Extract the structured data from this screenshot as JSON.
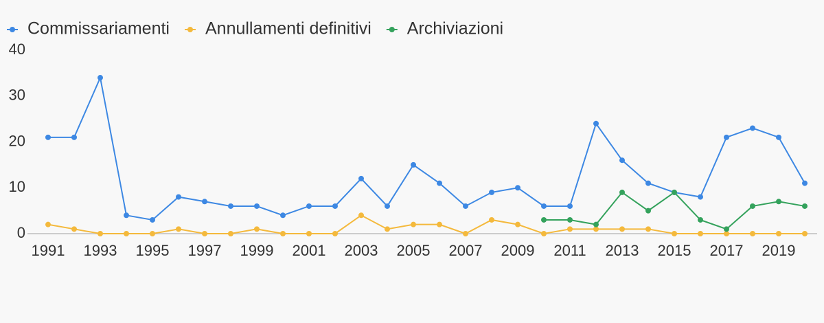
{
  "chart_data": {
    "type": "line",
    "x": [
      1991,
      1992,
      1993,
      1994,
      1995,
      1996,
      1997,
      1998,
      1999,
      2000,
      2001,
      2002,
      2003,
      2004,
      2005,
      2006,
      2007,
      2008,
      2009,
      2010,
      2011,
      2012,
      2013,
      2014,
      2015,
      2016,
      2017,
      2018,
      2019,
      2020
    ],
    "series": [
      {
        "name": "Commissariamenti",
        "color": "#3d88e3",
        "values": [
          21,
          21,
          34,
          4,
          3,
          8,
          7,
          6,
          6,
          4,
          6,
          6,
          12,
          6,
          15,
          11,
          6,
          9,
          10,
          6,
          6,
          24,
          16,
          11,
          9,
          8,
          21,
          23,
          21,
          11
        ]
      },
      {
        "name": "Annullamenti definitivi",
        "color": "#f4b93c",
        "values": [
          2,
          1,
          0,
          0,
          0,
          1,
          0,
          0,
          1,
          0,
          0,
          0,
          4,
          1,
          2,
          2,
          0,
          3,
          2,
          0,
          1,
          1,
          1,
          1,
          0,
          0,
          0,
          0,
          0,
          0
        ]
      },
      {
        "name": "Archiviazioni",
        "color": "#34a25c",
        "values": [
          null,
          null,
          null,
          null,
          null,
          null,
          null,
          null,
          null,
          null,
          null,
          null,
          null,
          null,
          null,
          null,
          null,
          null,
          null,
          3,
          3,
          2,
          9,
          5,
          9,
          3,
          1,
          6,
          7,
          6
        ]
      }
    ],
    "xlim": [
      1991,
      2020
    ],
    "xticks": [
      1991,
      1993,
      1995,
      1997,
      1999,
      2001,
      2003,
      2005,
      2007,
      2009,
      2011,
      2013,
      2015,
      2017,
      2019
    ],
    "ylim": [
      0,
      40
    ],
    "yticks": [
      0,
      10,
      20,
      30,
      40
    ],
    "grid": false,
    "legend": "top-left"
  }
}
